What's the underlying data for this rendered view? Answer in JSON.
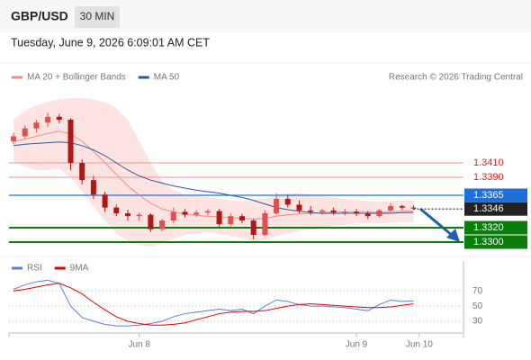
{
  "chart_data": [
    {
      "type": "candlestick",
      "title": "GBP/USD",
      "timeframe": "30 MIN",
      "subtitle": "Tuesday, June 9, 2026 6:09:01 AM CET",
      "source": "Research © 2026 Trading Central",
      "ylim": [
        1.32825,
        1.3555
      ],
      "up_color": "#e05050",
      "down_color": "#b01818",
      "candles": {
        "open": [
          1.344,
          1.3447,
          1.3458,
          1.3466,
          1.3474,
          1.347,
          1.341,
          1.3386,
          1.3366,
          1.3348,
          1.334,
          1.3336,
          1.3338,
          1.3318,
          1.333,
          1.3342,
          1.3338,
          1.3341,
          1.3343,
          1.3325,
          1.3336,
          1.333,
          1.331,
          1.334,
          1.336,
          1.3352,
          1.3344,
          1.3342,
          1.3344,
          1.3341,
          1.3342,
          1.334,
          1.3336,
          1.3344,
          1.335,
          1.3348
        ],
        "high": [
          1.3452,
          1.3462,
          1.347,
          1.348,
          1.3478,
          1.3472,
          1.3415,
          1.3392,
          1.337,
          1.3352,
          1.3345,
          1.3341,
          1.334,
          1.3332,
          1.3348,
          1.3346,
          1.3344,
          1.3346,
          1.3346,
          1.334,
          1.3339,
          1.3332,
          1.3344,
          1.3368,
          1.3366,
          1.3358,
          1.335,
          1.3346,
          1.3348,
          1.3346,
          1.3346,
          1.3343,
          1.3346,
          1.3354,
          1.3352,
          1.3351
        ],
        "low": [
          1.3436,
          1.3444,
          1.3452,
          1.346,
          1.3465,
          1.34,
          1.338,
          1.336,
          1.3342,
          1.3336,
          1.333,
          1.333,
          1.3314,
          1.3315,
          1.3326,
          1.3334,
          1.3335,
          1.3337,
          1.332,
          1.3322,
          1.3326,
          1.3304,
          1.3308,
          1.3338,
          1.3348,
          1.334,
          1.3338,
          1.3338,
          1.3338,
          1.3337,
          1.3336,
          1.3332,
          1.3334,
          1.3342,
          1.3345,
          1.3345
        ],
        "close": [
          1.3447,
          1.3458,
          1.3466,
          1.3474,
          1.347,
          1.341,
          1.3386,
          1.3366,
          1.3348,
          1.334,
          1.3336,
          1.3338,
          1.3318,
          1.333,
          1.3342,
          1.3338,
          1.3341,
          1.3343,
          1.3325,
          1.3336,
          1.333,
          1.331,
          1.334,
          1.336,
          1.3352,
          1.3344,
          1.3342,
          1.3344,
          1.3341,
          1.3342,
          1.334,
          1.3336,
          1.3344,
          1.335,
          1.3348,
          1.3347
        ]
      },
      "series": [
        {
          "name": "MA 20 + Bollinger Bands",
          "color": "#f28b82",
          "band_color": "#fde3e1",
          "values": [
            1.344,
            1.3443,
            1.3447,
            1.3451,
            1.3454,
            1.345,
            1.344,
            1.3426,
            1.341,
            1.3394,
            1.3378,
            1.3365,
            1.3354,
            1.3346,
            1.3342,
            1.3339,
            1.3337,
            1.3336,
            1.3335,
            1.3334,
            1.3333,
            1.3332,
            1.3333,
            1.3336,
            1.3338,
            1.3339,
            1.334,
            1.3341,
            1.3342,
            1.3342,
            1.3342,
            1.3342,
            1.3341,
            1.3342,
            1.3343,
            1.3343
          ],
          "upper": [
            1.347,
            1.3482,
            1.349,
            1.3495,
            1.3498,
            1.35,
            1.35,
            1.3498,
            1.3494,
            1.3486,
            1.347,
            1.344,
            1.341,
            1.3385,
            1.3372,
            1.3366,
            1.3364,
            1.3362,
            1.336,
            1.3358,
            1.3358,
            1.3358,
            1.336,
            1.3366,
            1.3368,
            1.3368,
            1.3366,
            1.3364,
            1.3362,
            1.336,
            1.3358,
            1.3357,
            1.3356,
            1.3357,
            1.3358,
            1.3358
          ],
          "lower": [
            1.3412,
            1.3405,
            1.34,
            1.34,
            1.3402,
            1.339,
            1.337,
            1.335,
            1.333,
            1.3312,
            1.3302,
            1.3296,
            1.3294,
            1.3298,
            1.3305,
            1.331,
            1.3312,
            1.3314,
            1.3312,
            1.3308,
            1.3306,
            1.33,
            1.3304,
            1.3308,
            1.3312,
            1.3316,
            1.3318,
            1.332,
            1.3322,
            1.3324,
            1.3326,
            1.3326,
            1.3326,
            1.3327,
            1.3328,
            1.3328
          ]
        },
        {
          "name": "MA 50",
          "color": "#2c5aa0",
          "values": [
            1.3434,
            1.3436,
            1.3437,
            1.3438,
            1.3439,
            1.3438,
            1.3434,
            1.3428,
            1.342,
            1.341,
            1.34,
            1.3392,
            1.3386,
            1.3382,
            1.3378,
            1.3375,
            1.3372,
            1.337,
            1.3368,
            1.3365,
            1.3362,
            1.3358,
            1.3353,
            1.3348,
            1.3345,
            1.3343,
            1.3341,
            1.334,
            1.334,
            1.334,
            1.334,
            1.334,
            1.334,
            1.334,
            1.3341,
            1.3341
          ]
        }
      ],
      "levels": [
        {
          "value": 1.341,
          "label": "1.3410",
          "color": "#e02020",
          "line_color": "#f4a6a6",
          "boxed": false
        },
        {
          "value": 1.339,
          "label": "1.3390",
          "color": "#e02020",
          "line_color": "#f4a6a6",
          "boxed": false
        },
        {
          "value": 1.3365,
          "label": "1.3365",
          "color": "#1e6fd9",
          "line_color": "#1e6fd9",
          "boxed": true
        },
        {
          "value": 1.3346,
          "label": "1.3346",
          "color": "#222222",
          "line_color": "#222222",
          "boxed": true,
          "dotted": true
        },
        {
          "value": 1.332,
          "label": "1.3320",
          "color": "#0a7d0a",
          "line_color": "#0a7d0a",
          "boxed": true
        },
        {
          "value": 1.33,
          "label": "1.3300",
          "color": "#0a7d0a",
          "line_color": "#0a7d0a",
          "boxed": true
        }
      ]
    },
    {
      "type": "line",
      "ylim": [
        17,
        88
      ],
      "yticks": [
        70,
        50,
        30
      ],
      "grid": true,
      "xticks": [
        {
          "value": 11,
          "label": "Jun 8"
        },
        {
          "value": 30,
          "label": "Jun 9"
        },
        {
          "value": 35.5,
          "label": "Jun 10"
        }
      ],
      "series": [
        {
          "name": "RSI",
          "color": "#5b7fd6",
          "values": [
            72,
            78,
            82,
            84,
            80,
            50,
            35,
            30,
            26,
            24,
            24,
            25,
            27,
            30,
            36,
            40,
            42,
            44,
            46,
            44,
            46,
            40,
            50,
            58,
            56,
            52,
            50,
            50,
            49,
            48,
            46,
            44,
            52,
            58,
            56,
            57
          ]
        },
        {
          "name": "9MA",
          "color": "#e00000",
          "values": [
            70,
            72,
            75,
            78,
            80,
            74,
            66,
            55,
            45,
            36,
            30,
            27,
            25,
            25,
            26,
            28,
            32,
            36,
            40,
            42,
            43,
            43,
            44,
            47,
            50,
            52,
            53,
            52,
            51,
            50,
            49,
            48,
            48,
            49,
            51,
            53
          ]
        }
      ]
    }
  ]
}
